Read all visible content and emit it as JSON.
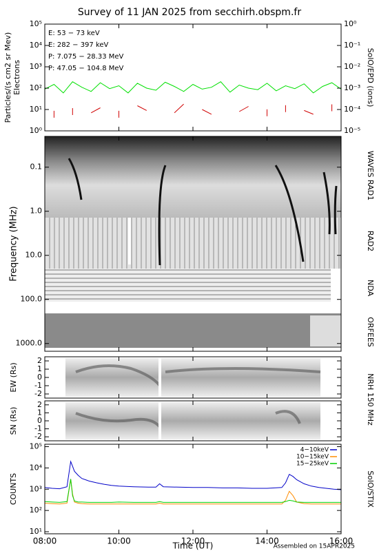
{
  "chart_data": [
    {
      "type": "line",
      "title": "Survey of 11 JAN 2025 from secchirh.obspm.fr",
      "ylabel": "Particles/(s cm2 sr Mev)",
      "ylabel2": "Electrons",
      "y2label": "SolO/EPD (ions)",
      "log_scale": true,
      "legend": "upper left",
      "ylim": [
        1,
        100000
      ],
      "yticks": [
        {
          "value": 1,
          "label": "10⁰"
        },
        {
          "value": 10,
          "label": "10¹"
        },
        {
          "value": 100,
          "label": "10²"
        },
        {
          "value": 1000,
          "label": "10³"
        },
        {
          "value": 10000,
          "label": "10⁴"
        },
        {
          "value": 100000,
          "label": "10⁵"
        }
      ],
      "y2lim": [
        1e-05,
        1
      ],
      "y2ticks": [
        {
          "value": 1e-05,
          "label": "10⁻⁵"
        },
        {
          "value": 0.0001,
          "label": "10⁻⁴"
        },
        {
          "value": 0.001,
          "label": "10⁻³"
        },
        {
          "value": 0.01,
          "label": "10⁻²"
        },
        {
          "value": 0.1,
          "label": "10⁻¹"
        },
        {
          "value": 1,
          "label": "10⁰"
        }
      ],
      "x": [
        8,
        8.25,
        8.5,
        8.75,
        9,
        9.25,
        9.5,
        9.75,
        10,
        10.25,
        10.5,
        10.75,
        11,
        11.25,
        11.5,
        11.75,
        12,
        12.25,
        12.5,
        12.75,
        13,
        13.25,
        13.5,
        13.75,
        14,
        14.25,
        14.5,
        14.75,
        15,
        15.25,
        15.5,
        15.75,
        16
      ],
      "series": [
        {
          "name": "E: 53 − 73 keV",
          "color": "#00e000",
          "values": [
            90,
            150,
            60,
            200,
            110,
            70,
            180,
            95,
            130,
            60,
            170,
            100,
            80,
            190,
            120,
            70,
            150,
            90,
            110,
            200,
            65,
            140,
            100,
            85,
            170,
            75,
            130,
            95,
            160,
            60,
            120,
            180,
            90
          ]
        },
        {
          "name": "E: 282 − 397 keV",
          "color": "#d00000",
          "values": [
            null,
            6,
            null,
            8,
            null,
            7,
            12,
            null,
            6,
            null,
            15,
            9,
            null,
            null,
            7,
            18,
            null,
            10,
            6,
            null,
            null,
            8,
            14,
            null,
            7,
            null,
            11,
            null,
            9,
            6,
            null,
            12,
            null
          ]
        },
        {
          "name": "P: 7.075 − 28.33 MeV",
          "color": "#000000",
          "axis": "y2"
        },
        {
          "name": "P: 47.05 − 104.8 MeV",
          "color": "#0000c0",
          "axis": "y2"
        }
      ]
    },
    {
      "type": "spectrogram",
      "ylabel": "Frequency (MHz)",
      "log_scale": true,
      "y_inverted": true,
      "ylim": [
        0.02,
        1500
      ],
      "yticks": [
        0.1,
        {
          "value": 1,
          "label": "1.0"
        },
        {
          "value": 10,
          "label": "10.0"
        },
        {
          "value": 100,
          "label": "100.0"
        },
        {
          "value": 1000,
          "label": "1000.0"
        }
      ],
      "instruments": [
        "WAVES RAD1",
        "RAD2",
        "NDA",
        "ORFEES"
      ]
    },
    {
      "type": "image",
      "ylabel": "EW (Rs)",
      "ylim": [
        -2.5,
        2.5
      ],
      "yticks": [
        -2,
        -1,
        0,
        1,
        2
      ],
      "instrument": "NRH 150 MHz"
    },
    {
      "type": "image",
      "ylabel": "SN (Rs)",
      "ylim": [
        -2.5,
        2.5
      ],
      "yticks": [
        -2,
        -1,
        0,
        1,
        2
      ]
    },
    {
      "type": "line",
      "ylabel": "COUNTS",
      "instrument": "SolO/STIX",
      "log_scale": true,
      "legend": "upper right",
      "ylim": [
        8,
        130000
      ],
      "yticks": [
        {
          "value": 10,
          "label": "10¹"
        },
        {
          "value": 100,
          "label": "10²"
        },
        {
          "value": 1000,
          "label": "10³"
        },
        {
          "value": 10000,
          "label": "10⁴"
        },
        {
          "value": 100000,
          "label": "10⁵"
        }
      ],
      "xlabel": "Time (UT)",
      "footnote": "Assembled on 15APR2025",
      "xlim": [
        8,
        16
      ],
      "xticks": [
        {
          "value": 8,
          "label": "08:00"
        },
        {
          "value": 10,
          "label": "10:00"
        },
        {
          "value": 12,
          "label": "12:00"
        },
        {
          "value": 14,
          "label": "14:00"
        },
        {
          "value": 16,
          "label": "16:00"
        }
      ],
      "x": [
        8,
        8.2,
        8.4,
        8.6,
        8.7,
        8.75,
        8.8,
        8.9,
        9,
        9.2,
        9.4,
        9.6,
        9.8,
        10,
        10.4,
        10.8,
        11,
        11.1,
        11.2,
        11.6,
        12,
        12.4,
        12.8,
        13.2,
        13.6,
        14,
        14.4,
        14.5,
        14.6,
        14.7,
        14.8,
        15,
        15.2,
        15.4,
        15.6,
        15.8,
        16
      ],
      "series": [
        {
          "name": "4−10keV",
          "color": "#0000c8",
          "values": [
            1200,
            1100,
            1050,
            1300,
            20000,
            12000,
            7000,
            4500,
            3200,
            2400,
            2000,
            1700,
            1500,
            1400,
            1300,
            1250,
            1250,
            1800,
            1300,
            1250,
            1200,
            1200,
            1150,
            1150,
            1100,
            1100,
            1200,
            2000,
            5000,
            4000,
            2800,
            1800,
            1400,
            1200,
            1100,
            1000,
            950
          ]
        },
        {
          "name": "10−15keV",
          "color": "#ff8c00",
          "values": [
            220,
            210,
            200,
            220,
            3000,
            600,
            250,
            220,
            210,
            200,
            200,
            200,
            200,
            200,
            200,
            200,
            200,
            220,
            200,
            200,
            200,
            200,
            200,
            200,
            200,
            200,
            200,
            300,
            800,
            500,
            250,
            210,
            200,
            200,
            200,
            200,
            200
          ]
        },
        {
          "name": "15−25keV",
          "color": "#00d000",
          "values": [
            260,
            250,
            240,
            260,
            3000,
            500,
            280,
            250,
            250,
            240,
            240,
            240,
            240,
            250,
            240,
            240,
            240,
            260,
            240,
            240,
            240,
            240,
            240,
            240,
            240,
            240,
            240,
            260,
            300,
            280,
            250,
            240,
            240,
            240,
            240,
            240,
            240
          ]
        }
      ]
    }
  ]
}
